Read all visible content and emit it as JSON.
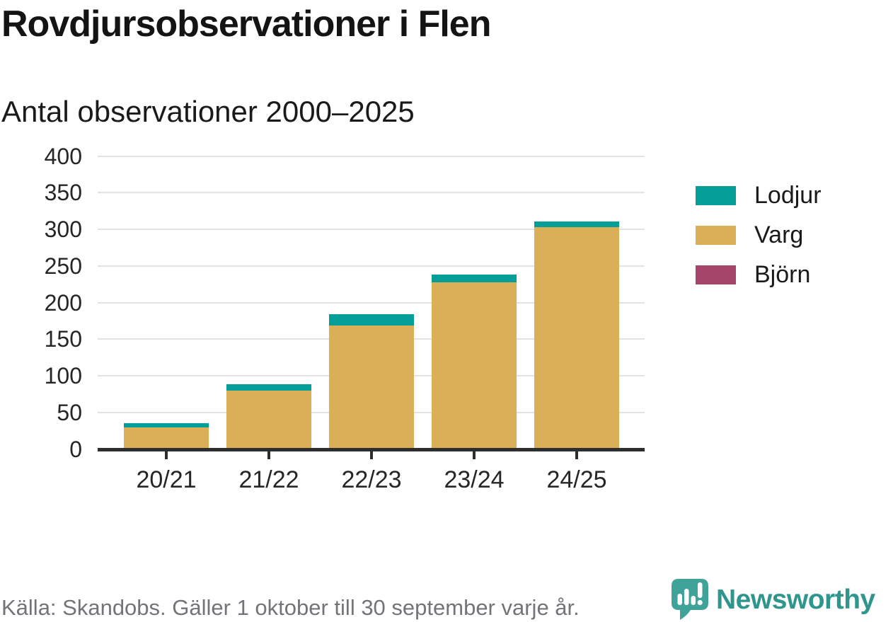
{
  "header": {
    "title": "Rovdjursobservationer i Flen",
    "subtitle": "Antal observationer 2000–2025"
  },
  "chart_data": {
    "type": "bar",
    "stacked": true,
    "title": "Rovdjursobservationer i Flen",
    "subtitle": "Antal observationer 2000–2025",
    "categories": [
      "20/21",
      "21/22",
      "22/23",
      "23/24",
      "24/25"
    ],
    "series": [
      {
        "name": "Lodjur",
        "color": "#049e98",
        "values": [
          6,
          9,
          16,
          11,
          8
        ]
      },
      {
        "name": "Varg",
        "color": "#dbae58",
        "values": [
          28,
          78,
          167,
          226,
          301
        ]
      },
      {
        "name": "Björn",
        "color": "#a44569",
        "values": [
          0,
          0,
          0,
          0,
          0
        ]
      }
    ],
    "stack_order_bottom_up": [
      "Björn",
      "Varg",
      "Lodjur"
    ],
    "totals": [
      34,
      87,
      183,
      237,
      309
    ],
    "yticks": [
      0,
      50,
      100,
      150,
      200,
      250,
      300,
      350,
      400
    ],
    "ylim": [
      0,
      400
    ],
    "xlabel": "",
    "ylabel": "",
    "grid": true,
    "legend_position": "right"
  },
  "footer": {
    "source": "Källa: Skandobs. Gäller 1 oktober till 30 september varje år.",
    "logo_text": "Newsworthy"
  },
  "colors": {
    "teal": "#049e98",
    "gold": "#dbae58",
    "maroon": "#a44569",
    "grid": "#e3e3e3",
    "axis": "#2e2e2e",
    "text": "#1a1a1a",
    "muted_text": "#73737a",
    "logo_teal": "#2f968e",
    "logo_icon": "#3fa39a"
  }
}
